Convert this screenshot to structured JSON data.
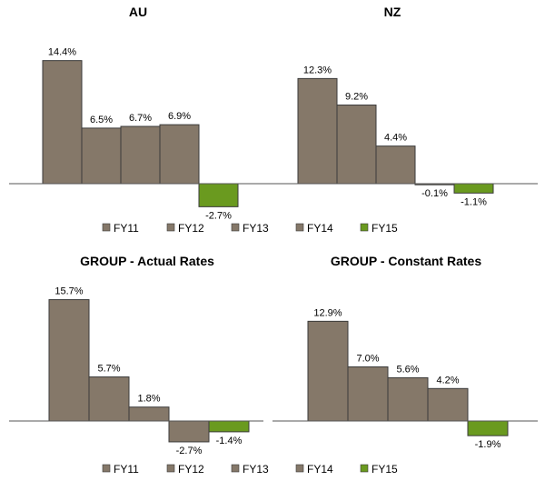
{
  "chart_data": [
    {
      "type": "bar",
      "title": "AU",
      "categories": [
        "FY11",
        "FY12",
        "FY13",
        "FY14",
        "FY15"
      ],
      "values": [
        14.4,
        6.5,
        6.7,
        6.9,
        -2.7
      ],
      "labels": [
        "14.4%",
        "6.5%",
        "6.7%",
        "6.9%",
        "-2.7%"
      ]
    },
    {
      "type": "bar",
      "title": "NZ",
      "categories": [
        "FY11",
        "FY12",
        "FY13",
        "FY14",
        "FY15"
      ],
      "values": [
        12.3,
        9.2,
        4.4,
        -0.1,
        -1.1
      ],
      "labels": [
        "12.3%",
        "9.2%",
        "4.4%",
        "-0.1%",
        "-1.1%"
      ]
    },
    {
      "type": "bar",
      "title": "GROUP - Actual Rates",
      "categories": [
        "FY11",
        "FY12",
        "FY13",
        "FY14",
        "FY15"
      ],
      "values": [
        15.7,
        5.7,
        1.8,
        -2.7,
        -1.4
      ],
      "labels": [
        "15.7%",
        "5.7%",
        "1.8%",
        "-2.7%",
        "-1.4%"
      ]
    },
    {
      "type": "bar",
      "title": "GROUP - Constant Rates",
      "categories": [
        "FY11",
        "FY12",
        "FY13",
        "FY14",
        "FY15"
      ],
      "values": [
        12.9,
        7.0,
        5.6,
        4.2,
        -1.9
      ],
      "labels": [
        "12.9%",
        "7.0%",
        "5.6%",
        "4.2%",
        "-1.9%"
      ]
    }
  ],
  "legend": {
    "items": [
      "FY11",
      "FY12",
      "FY13",
      "FY14",
      "FY15"
    ],
    "colors": [
      "#857869",
      "#857869",
      "#857869",
      "#857869",
      "#6a9a1f"
    ]
  },
  "colors": {
    "bar": "#857869",
    "bar_highlight": "#6a9a1f",
    "bar_stroke": "#3a3a3a",
    "axis": "#555555"
  }
}
